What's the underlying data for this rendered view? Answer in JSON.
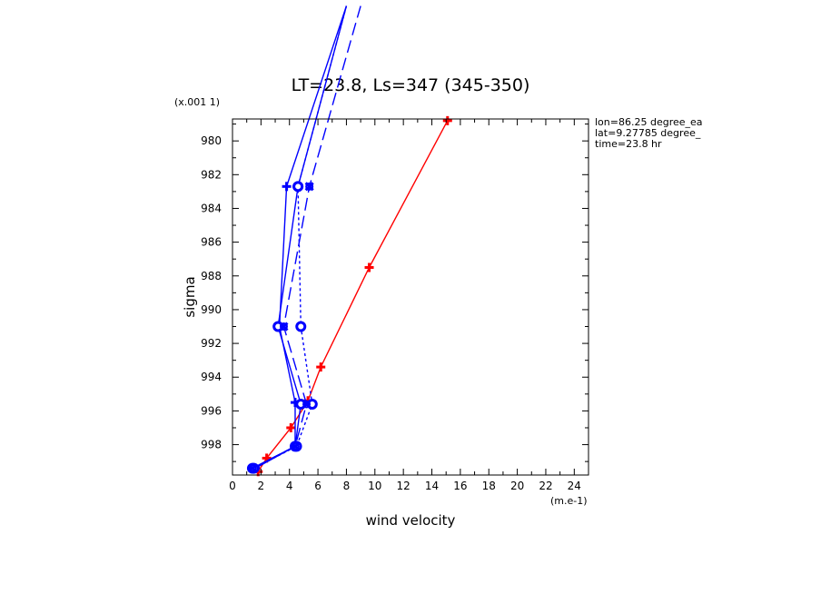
{
  "chart_data": {
    "type": "line",
    "title": "LT=23.8, Ls=347 (345-350)",
    "xlabel": "wind velocity",
    "ylabel": "sigma",
    "x_unit": "(m.e-1)",
    "y_unit": "(x.001 1)",
    "xlim": [
      0,
      25
    ],
    "ylim": [
      999.8,
      978.7
    ],
    "x_ticks": [
      0,
      2,
      4,
      6,
      8,
      10,
      12,
      14,
      16,
      18,
      20,
      22,
      24
    ],
    "y_ticks": [
      980,
      982,
      984,
      986,
      988,
      990,
      992,
      994,
      996,
      998
    ],
    "grid": false,
    "annotations": [
      "lon=86.25 degree_ea",
      "lat=9.27785 degree_",
      "time=23.8 hr"
    ],
    "series": [
      {
        "color": "#ff0000",
        "dash": "",
        "marker": "plus",
        "x": [
          1.8,
          2.4,
          4.1,
          5.3,
          6.2,
          9.6,
          15.1
        ],
        "y": [
          999.6,
          998.8,
          997.0,
          995.4,
          993.4,
          987.5,
          978.8
        ]
      },
      {
        "color": "#0000ff",
        "dash": "",
        "marker": "plus",
        "x": [
          1.6,
          4.4,
          4.4,
          3.3,
          3.8,
          8.0
        ],
        "y": [
          999.4,
          998.1,
          995.5,
          991.0,
          982.7,
          972.0
        ]
      },
      {
        "color": "#0000ff",
        "dash": "",
        "marker": "circle",
        "x": [
          1.4,
          4.4,
          4.8,
          3.2,
          4.6,
          8.0
        ],
        "y": [
          999.4,
          998.1,
          995.6,
          991.0,
          982.7,
          972.0
        ]
      },
      {
        "color": "#0000ff",
        "dash": "3,3",
        "marker": "circle",
        "x": [
          1.5,
          4.5,
          5.6,
          4.8,
          4.6,
          8.0
        ],
        "y": [
          999.4,
          998.1,
          995.6,
          991.0,
          982.7,
          972.0
        ]
      },
      {
        "color": "#0000ff",
        "dash": "14,6",
        "marker": "cross",
        "x": [
          1.4,
          4.4,
          5.2,
          3.6,
          5.4,
          9.0
        ],
        "y": [
          999.4,
          998.1,
          995.6,
          991.0,
          982.7,
          972.0
        ]
      }
    ]
  }
}
